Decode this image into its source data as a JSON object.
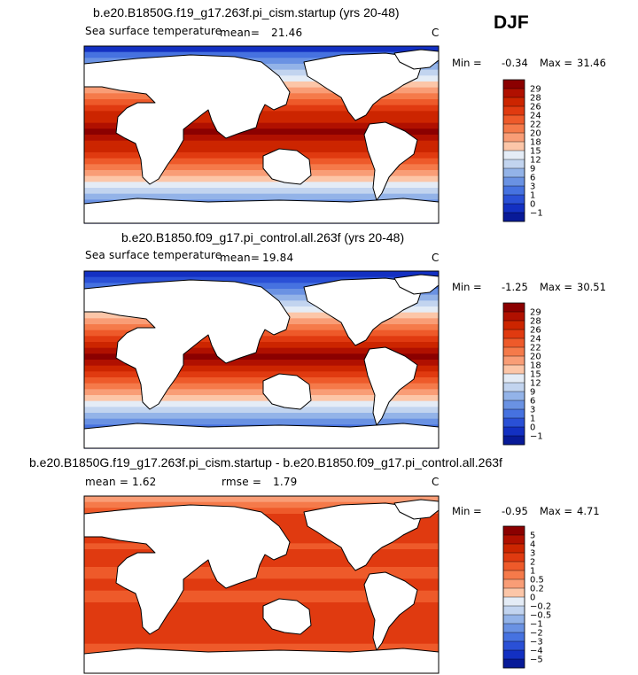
{
  "season": "DJF",
  "chart_data": [
    {
      "type": "heatmap",
      "title": "b.e20.B1850G.f19_g17.263f.pi_cism.startup (yrs 20-48)",
      "variable_label": "Sea surface temperature",
      "mean_label": "mean=",
      "mean": "21.46",
      "units": "C",
      "min_label": "Min =",
      "min": "-0.34",
      "max_label": "Max =",
      "max": "31.46",
      "colorbar_ticks": [
        "29",
        "28",
        "26",
        "24",
        "22",
        "20",
        "18",
        "15",
        "12",
        "9",
        "6",
        "3",
        "1",
        "0",
        "−1"
      ],
      "colorbar_colors": [
        "#8b0000",
        "#b01000",
        "#cc2500",
        "#e03a10",
        "#ee5a2a",
        "#f57a4a",
        "#f99d76",
        "#fcc6a8",
        "#e4ecf6",
        "#c2d4ef",
        "#93b3e8",
        "#6a92e3",
        "#4672e0",
        "#2a50d6",
        "#1330c2",
        "#081a98"
      ],
      "zonal_profile": [
        -1,
        1,
        3,
        6,
        9,
        12,
        15,
        18,
        20,
        22,
        24,
        26,
        27,
        28,
        29,
        28,
        27,
        26,
        24,
        22,
        20,
        18,
        15,
        12,
        9,
        6,
        3,
        1,
        0,
        -1
      ]
    },
    {
      "type": "heatmap",
      "title": "b.e20.B1850.f09_g17.pi_control.all.263f (yrs 20-48)",
      "variable_label": "Sea surface temperature",
      "mean_label": "mean=",
      "mean": "19.84",
      "units": "C",
      "min_label": "Min =",
      "min": "-1.25",
      "max_label": "Max =",
      "max": "30.51",
      "colorbar_ticks": [
        "29",
        "28",
        "26",
        "24",
        "22",
        "20",
        "18",
        "15",
        "12",
        "9",
        "6",
        "3",
        "1",
        "0",
        "−1"
      ],
      "colorbar_colors": [
        "#8b0000",
        "#b01000",
        "#cc2500",
        "#e03a10",
        "#ee5a2a",
        "#f57a4a",
        "#f99d76",
        "#fcc6a8",
        "#e4ecf6",
        "#c2d4ef",
        "#93b3e8",
        "#6a92e3",
        "#4672e0",
        "#2a50d6",
        "#1330c2",
        "#081a98"
      ],
      "zonal_profile": [
        -1,
        0,
        1,
        3,
        6,
        9,
        12,
        15,
        18,
        20,
        22,
        24,
        26,
        28,
        29,
        28,
        26,
        24,
        22,
        20,
        18,
        15,
        12,
        9,
        6,
        3,
        1,
        0,
        -1,
        -1
      ]
    },
    {
      "type": "heatmap",
      "title": "b.e20.B1850G.f19_g17.263f.pi_cism.startup - b.e20.B1850.f09_g17.pi_control.all.263f",
      "mean_label": "mean =",
      "mean": "1.62",
      "rmse_label": "rmse =",
      "rmse": "1.79",
      "units": "C",
      "min_label": "Min =",
      "min": "-0.95",
      "max_label": "Max =",
      "max": "4.71",
      "colorbar_ticks": [
        "5",
        "4",
        "3",
        "2",
        "1",
        "0.5",
        "0.2",
        "0",
        "−0.2",
        "−0.5",
        "−1",
        "−2",
        "−3",
        "−4",
        "−5"
      ],
      "colorbar_colors": [
        "#8b0000",
        "#b01000",
        "#cc2500",
        "#e03a10",
        "#ee5a2a",
        "#f57a4a",
        "#f99d76",
        "#fcc6a8",
        "#e4ecf6",
        "#c2d4ef",
        "#93b3e8",
        "#6a92e3",
        "#4672e0",
        "#2a50d6",
        "#1330c2",
        "#081a98"
      ],
      "zonal_profile": [
        0.2,
        0.5,
        1,
        2,
        2,
        2,
        2,
        2,
        1,
        2,
        2,
        2,
        1,
        1,
        2,
        2,
        1,
        1,
        2,
        2,
        2,
        2,
        2,
        2,
        2,
        1,
        1,
        0.5,
        0.2,
        0
      ]
    }
  ]
}
